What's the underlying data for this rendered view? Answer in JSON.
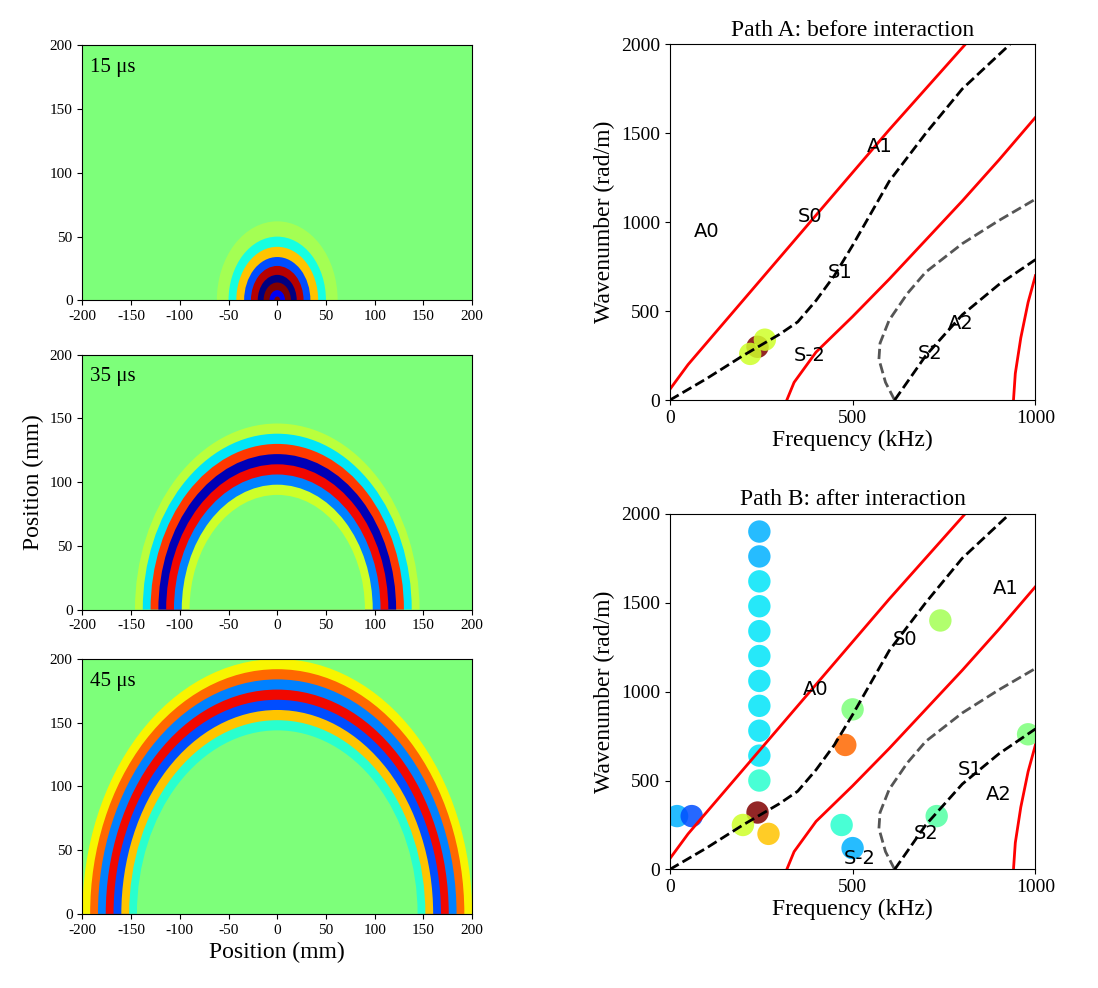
{
  "chart_data": [
    {
      "type": "wavefield",
      "annotation": "15 μs",
      "xlim": [
        -200,
        200
      ],
      "xticks": [
        -200,
        -150,
        -100,
        -50,
        0,
        50,
        100,
        150,
        200
      ],
      "ylim": [
        0,
        200
      ],
      "yticks": [
        0,
        50,
        100,
        150,
        200
      ],
      "color_range": [
        -1,
        1
      ],
      "rings": {
        "radius": [
          62,
          50,
          42,
          34,
          27,
          20,
          14,
          8,
          3
        ],
        "values": [
          0.1,
          -0.25,
          0.4,
          -0.6,
          0.9,
          -1,
          1,
          -0.8,
          1
        ]
      }
    },
    {
      "type": "wavefield",
      "annotation": "35 μs",
      "ylabel": "Position (mm)",
      "xlim": [
        -200,
        200
      ],
      "xticks": [
        -200,
        -150,
        -100,
        -50,
        0,
        50,
        100,
        150,
        200
      ],
      "ylim": [
        0,
        200
      ],
      "yticks": [
        0,
        50,
        100,
        150,
        200
      ],
      "color_range": [
        -1,
        1
      ],
      "rings": {
        "radius": [
          146,
          138,
          130,
          122,
          114,
          106,
          98,
          90
        ],
        "values": [
          0.15,
          -0.3,
          0.7,
          -0.9,
          0.8,
          -0.5,
          0.2,
          0
        ]
      }
    },
    {
      "type": "wavefield",
      "annotation": "45 μs",
      "xlabel": "Position (mm)",
      "xlim": [
        -200,
        200
      ],
      "xticks": [
        -200,
        -150,
        -100,
        -50,
        0,
        50,
        100,
        150,
        200
      ],
      "ylim": [
        0,
        200
      ],
      "yticks": [
        0,
        50,
        100,
        150,
        200
      ],
      "color_range": [
        -1,
        1
      ],
      "rings": {
        "radius": [
          200,
          192,
          184,
          176,
          168,
          160,
          152,
          144
        ],
        "values": [
          0.3,
          0.6,
          -0.5,
          0.8,
          -0.6,
          0.4,
          -0.2,
          0
        ]
      }
    },
    {
      "type": "line",
      "title": "Path A: before interaction",
      "xlabel": "Frequency (kHz)",
      "ylabel": "Wavenumber (rad/m)",
      "xlim": [
        0,
        1000
      ],
      "xticks": [
        0,
        500,
        1000
      ],
      "ylim": [
        0,
        2000
      ],
      "yticks": [
        0,
        500,
        1000,
        1500,
        2000
      ],
      "series": [
        {
          "color": "#ff0000",
          "line_style": "solid",
          "x": [
            0,
            50,
            100,
            200,
            400,
            600,
            808
          ],
          "values": [
            60,
            200,
            320,
            560,
            1040,
            1520,
            2000
          ]
        },
        {
          "color": "#000000",
          "line_style": "dashed",
          "x": [
            0,
            100,
            200,
            300,
            350,
            400,
            450,
            500,
            550,
            600,
            700,
            800,
            930
          ],
          "values": [
            0,
            120,
            250,
            370,
            440,
            560,
            700,
            870,
            1050,
            1230,
            1500,
            1750,
            2000
          ]
        },
        {
          "color": "#ff0000",
          "line_style": "solid",
          "x": [
            320,
            340,
            400,
            500,
            600,
            700,
            800,
            900,
            1000
          ],
          "values": [
            0,
            100,
            270,
            470,
            680,
            900,
            1120,
            1350,
            1590
          ]
        },
        {
          "color": "#555555",
          "line_style": "dashed",
          "x": [
            615,
            590,
            572,
            575,
            600,
            650,
            700,
            800,
            900,
            1000
          ],
          "values": [
            0,
            100,
            230,
            320,
            450,
            600,
            720,
            880,
            1010,
            1130
          ]
        },
        {
          "color": "#000000",
          "line_style": "dashed",
          "x": [
            615,
            700,
            800,
            900,
            1000
          ],
          "values": [
            0,
            250,
            480,
            650,
            790
          ]
        },
        {
          "color": "#ff0000",
          "line_style": "solid",
          "x": [
            940,
            945,
            960,
            980,
            1000
          ],
          "values": [
            0,
            150,
            350,
            550,
            700
          ]
        }
      ],
      "annotations": [
        {
          "text": "A0",
          "x": 100,
          "y": 950
        },
        {
          "text": "S0",
          "x": 384,
          "y": 1034
        },
        {
          "text": "A1",
          "x": 575,
          "y": 1425
        },
        {
          "text": "S1",
          "x": 466,
          "y": 720
        },
        {
          "text": "S-2",
          "x": 384,
          "y": 250
        },
        {
          "text": "S2",
          "x": 712,
          "y": 260
        },
        {
          "text": "A2",
          "x": 795,
          "y": 433
        }
      ],
      "spots": {
        "x": [
          240,
          220,
          260
        ],
        "y": [
          300,
          260,
          340
        ],
        "values": [
          1.0,
          0.6,
          0.6
        ]
      }
    },
    {
      "type": "line",
      "title": "Path B: after interaction",
      "xlabel": "Frequency (kHz)",
      "ylabel": "Wavenumber (rad/m)",
      "xlim": [
        0,
        1000
      ],
      "xticks": [
        0,
        500,
        1000
      ],
      "ylim": [
        0,
        2000
      ],
      "yticks": [
        0,
        500,
        1000,
        1500,
        2000
      ],
      "series": [
        {
          "color": "#ff0000",
          "line_style": "solid",
          "x": [
            0,
            50,
            100,
            200,
            400,
            600,
            808
          ],
          "values": [
            60,
            200,
            320,
            560,
            1040,
            1520,
            2000
          ]
        },
        {
          "color": "#000000",
          "line_style": "dashed",
          "x": [
            0,
            100,
            200,
            300,
            350,
            400,
            450,
            500,
            550,
            600,
            700,
            800,
            930
          ],
          "values": [
            0,
            120,
            250,
            370,
            440,
            560,
            700,
            870,
            1050,
            1230,
            1500,
            1750,
            2000
          ]
        },
        {
          "color": "#ff0000",
          "line_style": "solid",
          "x": [
            320,
            340,
            400,
            500,
            600,
            700,
            800,
            900,
            1000
          ],
          "values": [
            0,
            100,
            270,
            470,
            680,
            900,
            1120,
            1350,
            1590
          ]
        },
        {
          "color": "#555555",
          "line_style": "dashed",
          "x": [
            615,
            590,
            572,
            575,
            600,
            650,
            700,
            800,
            900,
            1000
          ],
          "values": [
            0,
            100,
            230,
            320,
            450,
            600,
            720,
            880,
            1010,
            1130
          ]
        },
        {
          "color": "#000000",
          "line_style": "dashed",
          "x": [
            615,
            700,
            800,
            900,
            1000
          ],
          "values": [
            0,
            250,
            480,
            650,
            790
          ]
        },
        {
          "color": "#ff0000",
          "line_style": "solid",
          "x": [
            940,
            945,
            960,
            980,
            1000
          ],
          "values": [
            0,
            150,
            350,
            550,
            700
          ]
        }
      ],
      "annotations": [
        {
          "text": "A0",
          "x": 400,
          "y": 1010
        },
        {
          "text": "S0",
          "x": 644,
          "y": 1295
        },
        {
          "text": "A1",
          "x": 918,
          "y": 1580
        },
        {
          "text": "S1",
          "x": 822,
          "y": 564
        },
        {
          "text": "S-2",
          "x": 520,
          "y": 60
        },
        {
          "text": "S2",
          "x": 700,
          "y": 200
        },
        {
          "text": "A2",
          "x": 900,
          "y": 420
        }
      ],
      "spots": {
        "x": [
          240,
          270,
          200,
          245,
          245,
          245,
          245,
          245,
          245,
          245,
          245,
          245,
          245,
          245,
          480,
          500,
          470,
          500,
          740,
          730,
          980,
          20,
          60
        ],
        "y": [
          320,
          200,
          250,
          500,
          640,
          780,
          920,
          1060,
          1200,
          1340,
          1480,
          1620,
          1760,
          1900,
          700,
          900,
          250,
          120,
          1400,
          300,
          760,
          300,
          300
        ],
        "values": [
          1.0,
          0.7,
          0.6,
          0.4,
          0.35,
          0.35,
          0.35,
          0.35,
          0.35,
          0.35,
          0.35,
          0.35,
          0.3,
          0.3,
          0.8,
          0.5,
          0.4,
          0.3,
          0.55,
          0.45,
          0.5,
          0.3,
          0.2
        ]
      }
    }
  ]
}
